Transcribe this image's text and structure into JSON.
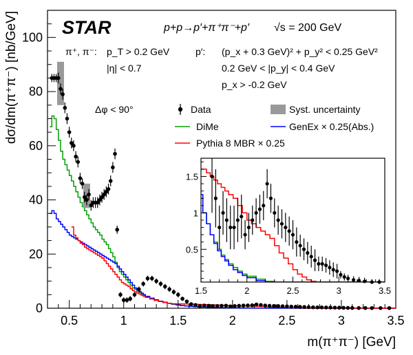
{
  "chart_data": {
    "type": "line",
    "experiment_label": "STAR",
    "reaction": "p+p→p′+π⁺π⁻+p′",
    "energy": "√s = 200 GeV",
    "xlabel": "m(π⁺π⁻) [GeV]",
    "ylabel": "dσ/dm(π⁺π⁻) [nb/GeV]",
    "xlim": [
      0.3,
      3.5
    ],
    "ylim": [
      0,
      110
    ],
    "x_ticks": [
      "0.5",
      "1",
      "1.5",
      "2",
      "2.5",
      "3",
      "3.5"
    ],
    "y_ticks": [
      "0",
      "20",
      "40",
      "60",
      "80",
      "100"
    ],
    "cuts": {
      "pion_label": "π⁺, π⁻:",
      "pion_pt": "p_T > 0.2 GeV",
      "pion_eta": "|η| < 0.7",
      "proton_label": "p′:",
      "proton_cut1": "(p_x + 0.3 GeV)² + p_y² < 0.25 GeV²",
      "proton_cut2": "0.2 GeV < |p_y| < 0.4 GeV",
      "proton_cut3": "p_x > -0.2 GeV",
      "dphi": "Δφ < 90°"
    },
    "legend": [
      {
        "name": "Data",
        "color": "#000000",
        "marker": "point"
      },
      {
        "name": "Syst. uncertainty",
        "color": "#999999",
        "marker": "box"
      },
      {
        "name": "DiMe",
        "color": "#00a000",
        "marker": "line"
      },
      {
        "name": "GenEx × 0.25(Abs.)",
        "color": "#0000ff",
        "marker": "line"
      },
      {
        "name": "Pythia 8 MBR × 0.25",
        "color": "#ff0000",
        "marker": "line"
      }
    ],
    "data_points": [
      {
        "x": 0.34,
        "y": 85,
        "err": 1.5
      },
      {
        "x": 0.36,
        "y": 85,
        "err": 1.5
      },
      {
        "x": 0.38,
        "y": 85,
        "err": 1.5
      },
      {
        "x": 0.4,
        "y": 85,
        "err": 2
      },
      {
        "x": 0.42,
        "y": 81,
        "err": 2
      },
      {
        "x": 0.44,
        "y": 79,
        "err": 2
      },
      {
        "x": 0.46,
        "y": 74,
        "err": 2
      },
      {
        "x": 0.48,
        "y": 70,
        "err": 2
      },
      {
        "x": 0.5,
        "y": 65,
        "err": 2
      },
      {
        "x": 0.52,
        "y": 61,
        "err": 2
      },
      {
        "x": 0.54,
        "y": 60,
        "err": 2
      },
      {
        "x": 0.56,
        "y": 56,
        "err": 2
      },
      {
        "x": 0.58,
        "y": 54,
        "err": 2
      },
      {
        "x": 0.6,
        "y": 48,
        "err": 2
      },
      {
        "x": 0.62,
        "y": 46,
        "err": 2
      },
      {
        "x": 0.64,
        "y": 41,
        "err": 2
      },
      {
        "x": 0.66,
        "y": 40,
        "err": 2
      },
      {
        "x": 0.68,
        "y": 42,
        "err": 2
      },
      {
        "x": 0.7,
        "y": 38,
        "err": 2
      },
      {
        "x": 0.72,
        "y": 39,
        "err": 2
      },
      {
        "x": 0.74,
        "y": 39,
        "err": 2
      },
      {
        "x": 0.76,
        "y": 39,
        "err": 2
      },
      {
        "x": 0.78,
        "y": 40,
        "err": 2
      },
      {
        "x": 0.8,
        "y": 41,
        "err": 2
      },
      {
        "x": 0.82,
        "y": 42,
        "err": 2
      },
      {
        "x": 0.84,
        "y": 43,
        "err": 2
      },
      {
        "x": 0.86,
        "y": 44,
        "err": 2
      },
      {
        "x": 0.88,
        "y": 47,
        "err": 2
      },
      {
        "x": 0.9,
        "y": 52,
        "err": 2
      },
      {
        "x": 0.92,
        "y": 57,
        "err": 2
      },
      {
        "x": 0.94,
        "y": 29,
        "err": 1.5
      },
      {
        "x": 0.97,
        "y": 5,
        "err": 1
      },
      {
        "x": 1.0,
        "y": 3,
        "err": 1
      },
      {
        "x": 1.03,
        "y": 3,
        "err": 1
      },
      {
        "x": 1.06,
        "y": 3.5,
        "err": 1
      },
      {
        "x": 1.1,
        "y": 5,
        "err": 1
      },
      {
        "x": 1.14,
        "y": 7,
        "err": 1
      },
      {
        "x": 1.18,
        "y": 9,
        "err": 1
      },
      {
        "x": 1.22,
        "y": 11,
        "err": 1
      },
      {
        "x": 1.26,
        "y": 11,
        "err": 1
      },
      {
        "x": 1.3,
        "y": 10,
        "err": 1
      },
      {
        "x": 1.34,
        "y": 9,
        "err": 1
      },
      {
        "x": 1.38,
        "y": 8,
        "err": 1
      },
      {
        "x": 1.42,
        "y": 7,
        "err": 1
      },
      {
        "x": 1.46,
        "y": 6,
        "err": 1
      },
      {
        "x": 1.5,
        "y": 5,
        "err": 1
      },
      {
        "x": 1.54,
        "y": 3.5,
        "err": 0.8
      },
      {
        "x": 1.58,
        "y": 2.5,
        "err": 0.7
      },
      {
        "x": 1.62,
        "y": 1.5,
        "err": 0.5
      },
      {
        "x": 1.66,
        "y": 1.2,
        "err": 0.4
      },
      {
        "x": 1.7,
        "y": 0.8,
        "err": 0.3
      },
      {
        "x": 1.74,
        "y": 1.0,
        "err": 0.3
      },
      {
        "x": 1.78,
        "y": 0.9,
        "err": 0.3
      },
      {
        "x": 1.82,
        "y": 0.8,
        "err": 0.3
      },
      {
        "x": 1.86,
        "y": 0.8,
        "err": 0.3
      },
      {
        "x": 1.9,
        "y": 0.9,
        "err": 0.3
      },
      {
        "x": 1.94,
        "y": 0.95,
        "err": 0.3
      },
      {
        "x": 1.98,
        "y": 0.7,
        "err": 0.2
      },
      {
        "x": 2.02,
        "y": 0.8,
        "err": 0.2
      },
      {
        "x": 2.06,
        "y": 0.9,
        "err": 0.2
      },
      {
        "x": 2.1,
        "y": 1.0,
        "err": 0.2
      },
      {
        "x": 2.14,
        "y": 1.05,
        "err": 0.2
      },
      {
        "x": 2.18,
        "y": 1.1,
        "err": 0.2
      },
      {
        "x": 2.22,
        "y": 1.4,
        "err": 0.2
      },
      {
        "x": 2.26,
        "y": 1.2,
        "err": 0.2
      },
      {
        "x": 2.3,
        "y": 1.0,
        "err": 0.2
      },
      {
        "x": 2.34,
        "y": 0.9,
        "err": 0.2
      },
      {
        "x": 2.38,
        "y": 0.85,
        "err": 0.2
      },
      {
        "x": 2.42,
        "y": 0.8,
        "err": 0.2
      },
      {
        "x": 2.46,
        "y": 0.75,
        "err": 0.2
      },
      {
        "x": 2.5,
        "y": 0.7,
        "err": 0.2
      },
      {
        "x": 2.54,
        "y": 0.6,
        "err": 0.2
      },
      {
        "x": 2.58,
        "y": 0.55,
        "err": 0.15
      },
      {
        "x": 2.62,
        "y": 0.5,
        "err": 0.15
      },
      {
        "x": 2.66,
        "y": 0.45,
        "err": 0.15
      },
      {
        "x": 2.7,
        "y": 0.4,
        "err": 0.15
      },
      {
        "x": 2.74,
        "y": 0.35,
        "err": 0.15
      },
      {
        "x": 2.78,
        "y": 0.3,
        "err": 0.1
      },
      {
        "x": 2.82,
        "y": 0.3,
        "err": 0.1
      },
      {
        "x": 2.86,
        "y": 0.28,
        "err": 0.1
      },
      {
        "x": 2.9,
        "y": 0.25,
        "err": 0.1
      },
      {
        "x": 2.94,
        "y": 0.22,
        "err": 0.1
      },
      {
        "x": 2.98,
        "y": 0.2,
        "err": 0.1
      },
      {
        "x": 3.02,
        "y": 0.15,
        "err": 0.05
      },
      {
        "x": 3.06,
        "y": 0.12,
        "err": 0.05
      },
      {
        "x": 3.1,
        "y": 0.1,
        "err": 0.05
      },
      {
        "x": 3.16,
        "y": 0.08,
        "err": 0.05
      },
      {
        "x": 3.22,
        "y": 0.07,
        "err": 0.05
      },
      {
        "x": 3.28,
        "y": 0.06,
        "err": 0.05
      },
      {
        "x": 3.36,
        "y": 0.05,
        "err": 0.04
      },
      {
        "x": 3.44,
        "y": 0.05,
        "err": 0.04
      }
    ],
    "syst_boxes": [
      {
        "x": 0.42,
        "ylo": 75,
        "yhi": 91
      },
      {
        "x": 0.66,
        "ylo": 37,
        "yhi": 46
      }
    ],
    "series": [
      {
        "name": "DiMe",
        "color": "#00a000",
        "x": [
          0.32,
          0.34,
          0.36,
          0.38,
          0.4,
          0.42,
          0.44,
          0.46,
          0.48,
          0.5,
          0.52,
          0.54,
          0.56,
          0.58,
          0.6,
          0.62,
          0.64,
          0.66,
          0.68,
          0.7,
          0.72,
          0.74,
          0.76,
          0.78,
          0.8,
          0.82,
          0.84,
          0.86,
          0.88,
          0.9,
          0.92,
          0.94,
          0.96,
          0.98,
          1.0,
          1.02,
          1.04,
          1.06,
          1.08,
          1.1,
          1.12,
          1.14,
          1.16,
          1.18,
          1.2,
          1.24,
          1.28,
          1.32,
          1.36,
          1.4,
          1.44,
          1.48,
          1.52,
          1.56,
          1.6,
          1.64,
          1.68,
          1.72,
          1.76,
          1.8,
          1.85,
          1.9,
          1.95,
          2.0,
          2.1,
          2.2,
          2.3,
          2.4,
          2.5,
          2.6,
          2.7,
          2.8,
          2.9,
          3.0,
          3.1,
          3.2,
          3.3,
          3.4,
          3.5
        ],
        "y": [
          67,
          71,
          70,
          66,
          62,
          58,
          55,
          53,
          51,
          49,
          47,
          45,
          43,
          41,
          39,
          37.5,
          36,
          34.5,
          33,
          31.5,
          30,
          29,
          28,
          27,
          25.5,
          24.5,
          23.5,
          22,
          20.5,
          19,
          17,
          15,
          13.5,
          12.5,
          11.5,
          10.5,
          9.5,
          8.5,
          7.5,
          7,
          6.3,
          5.8,
          5.2,
          4.7,
          4.2,
          3.6,
          3.0,
          2.5,
          2.1,
          1.8,
          1.5,
          1.2,
          1.0,
          0.85,
          0.7,
          0.6,
          0.5,
          0.42,
          0.36,
          0.3,
          0.25,
          0.2,
          0.16,
          0.13,
          0.09,
          0.06,
          0.04,
          0.03,
          0.02,
          0.015,
          0.01,
          0.008,
          0.006,
          0.004,
          0.003,
          0.002,
          0.002,
          0.001,
          0.001
        ]
      },
      {
        "name": "GenEx × 0.25(Abs.)",
        "color": "#0000ff",
        "x": [
          0.32,
          0.34,
          0.36,
          0.38,
          0.4,
          0.42,
          0.44,
          0.46,
          0.48,
          0.5,
          0.52,
          0.54,
          0.56,
          0.58,
          0.6,
          0.62,
          0.64,
          0.66,
          0.68,
          0.7,
          0.72,
          0.74,
          0.76,
          0.78,
          0.8,
          0.82,
          0.84,
          0.86,
          0.88,
          0.9,
          0.92,
          0.94,
          0.96,
          0.98,
          1.0,
          1.02,
          1.04,
          1.06,
          1.08,
          1.1,
          1.12,
          1.14,
          1.16,
          1.18,
          1.2,
          1.24,
          1.28,
          1.32,
          1.36,
          1.4,
          1.44,
          1.48,
          1.52,
          1.56,
          1.6,
          1.64,
          1.68,
          1.72,
          1.76,
          1.8,
          1.85,
          1.9,
          1.95,
          2.0,
          2.1,
          2.2,
          2.3,
          2.4,
          2.5,
          2.6,
          2.7,
          2.8,
          2.9,
          3.0,
          3.1,
          3.2,
          3.3,
          3.4,
          3.5
        ],
        "y": [
          35,
          36,
          35,
          33,
          32,
          31,
          30,
          29,
          28,
          27,
          26.5,
          26,
          25.5,
          25,
          24.5,
          24,
          23.5,
          23,
          22.5,
          22,
          21.5,
          21,
          20.5,
          20,
          19.5,
          19,
          18.5,
          18,
          17.5,
          17,
          16.5,
          15.5,
          14.5,
          13.5,
          12.5,
          11.5,
          10.5,
          9.5,
          8.5,
          7.5,
          6.8,
          6.2,
          5.6,
          5,
          4.4,
          3.7,
          3.1,
          2.6,
          2.2,
          1.8,
          1.5,
          1.25,
          1.0,
          0.85,
          0.7,
          0.58,
          0.48,
          0.4,
          0.34,
          0.28,
          0.22,
          0.18,
          0.14,
          0.11,
          0.07,
          0.05,
          0.03,
          0.02,
          0.015,
          0.01,
          0.008,
          0.006,
          0.004,
          0.003,
          0.002,
          0.002,
          0.001,
          0.001,
          0.001
        ]
      },
      {
        "name": "Pythia 8 MBR × 0.25",
        "color": "#ff0000",
        "x": [
          0.52,
          0.54,
          0.56,
          0.58,
          0.6,
          0.62,
          0.64,
          0.66,
          0.68,
          0.7,
          0.72,
          0.74,
          0.76,
          0.78,
          0.8,
          0.82,
          0.84,
          0.86,
          0.88,
          0.9,
          0.92,
          0.94,
          0.96,
          0.98,
          1.0,
          1.02,
          1.04,
          1.06,
          1.08,
          1.1,
          1.12,
          1.14,
          1.16,
          1.18,
          1.2,
          1.24,
          1.28,
          1.32,
          1.36,
          1.4,
          1.44,
          1.48,
          1.52,
          1.56,
          1.6,
          1.64,
          1.68,
          1.72,
          1.76,
          1.8,
          1.85,
          1.9,
          1.95,
          2.0,
          2.05,
          2.1,
          2.15,
          2.2,
          2.25,
          2.3,
          2.35,
          2.4,
          2.45,
          2.5,
          2.55,
          2.6,
          2.65,
          2.7,
          2.75,
          2.8,
          2.9,
          3.0,
          3.1,
          3.2,
          3.3,
          3.4,
          3.5
        ],
        "y": [
          30,
          27,
          26,
          25,
          24,
          23.5,
          22.5,
          22,
          21.5,
          21,
          20.5,
          20,
          19.5,
          19,
          18.5,
          17.5,
          16.5,
          15.5,
          14.5,
          13.5,
          12.5,
          11.5,
          10.5,
          9.5,
          9,
          8.5,
          8,
          7.2,
          6.5,
          6,
          5.6,
          5.2,
          4.8,
          4.4,
          4,
          3.4,
          2.9,
          2.5,
          2.1,
          1.8,
          1.65,
          1.6,
          1.6,
          1.55,
          1.5,
          1.45,
          1.4,
          1.35,
          1.3,
          1.25,
          1.2,
          1.1,
          1.0,
          0.9,
          0.85,
          0.8,
          0.75,
          0.7,
          0.65,
          0.55,
          0.45,
          0.38,
          0.3,
          0.22,
          0.16,
          0.12,
          0.08,
          0.06,
          0.04,
          0.03,
          0.02,
          0.015,
          0.01,
          0.008,
          0.006,
          0.004,
          0.003
        ]
      }
    ],
    "inset": {
      "xlim": [
        1.5,
        3.5
      ],
      "ylim": [
        0.05,
        1.75
      ],
      "x_ticks": [
        "1.5",
        "2",
        "2.5",
        "3",
        "3.5"
      ],
      "y_ticks": [
        "0.5",
        "1",
        "1.5"
      ]
    }
  }
}
